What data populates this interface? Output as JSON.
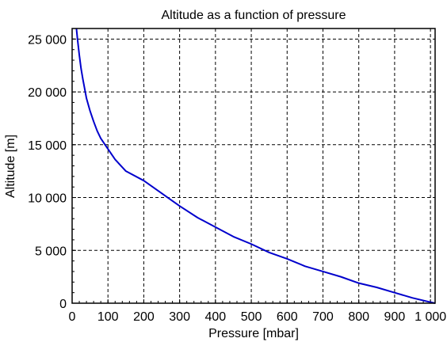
{
  "chart_data": {
    "type": "line",
    "title": "Altitude as a function of pressure",
    "xlabel": "Pressure [mbar]",
    "ylabel": "Altitude [m]",
    "xlim": [
      0,
      1013
    ],
    "ylim": [
      0,
      26000
    ],
    "grid": true,
    "grid_style": "dashed",
    "x_ticks": [
      0,
      100,
      200,
      300,
      400,
      500,
      600,
      700,
      800,
      900,
      1000
    ],
    "x_tick_labels": [
      "0",
      "100",
      "200",
      "300",
      "400",
      "500",
      "600",
      "700",
      "800",
      "900",
      "1 000"
    ],
    "y_ticks": [
      0,
      5000,
      10000,
      15000,
      20000,
      25000
    ],
    "y_tick_labels": [
      "0",
      "5 000",
      "10 000",
      "15 000",
      "20 000",
      "25 000"
    ],
    "line_color": "#0000cc",
    "series": [
      {
        "x": [
          12,
          15,
          20,
          25,
          30,
          40,
          50,
          60,
          70,
          80,
          100,
          120,
          150,
          200,
          250,
          300,
          350,
          400,
          450,
          500,
          550,
          600,
          650,
          700,
          750,
          800,
          850,
          900,
          950,
          1000,
          1013
        ],
        "values": [
          26000,
          25000,
          23500,
          22200,
          21200,
          19400,
          18200,
          17200,
          16300,
          15600,
          14600,
          13600,
          12500,
          11600,
          10400,
          9200,
          8100,
          7200,
          6300,
          5600,
          4800,
          4200,
          3500,
          3000,
          2500,
          1900,
          1500,
          1000,
          500,
          100,
          0
        ]
      }
    ]
  }
}
